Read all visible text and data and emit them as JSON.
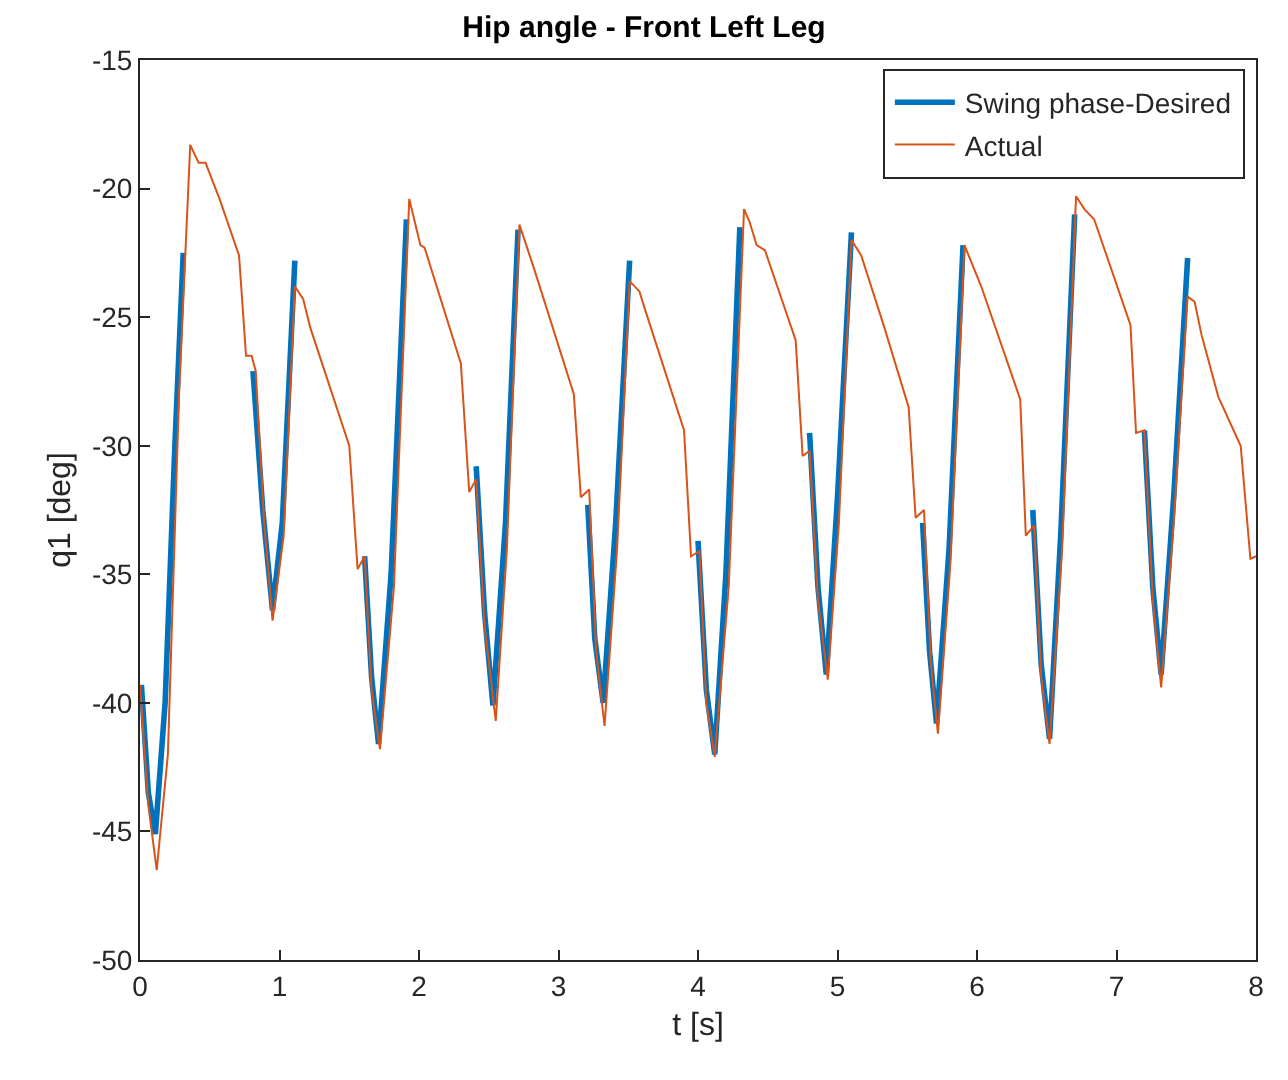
{
  "chart_data": {
    "type": "line",
    "title": "Hip angle - Front Left Leg",
    "xlabel": "t [s]",
    "ylabel": "q1 [deg]",
    "xlim": [
      0,
      8
    ],
    "xticks": [
      0,
      1,
      2,
      3,
      4,
      5,
      6,
      7,
      8
    ],
    "ylim": [
      -50,
      -15
    ],
    "yticks": [
      -50,
      -45,
      -40,
      -35,
      -30,
      -25,
      -20,
      -15
    ],
    "legend": "top right",
    "line_style": "solid",
    "marker": "none",
    "series": [
      {
        "name": "Swing phase-Desired",
        "color": "#0072bd",
        "x": [
          0.01,
          0.06,
          0.11,
          0.18,
          0.25,
          0.31,
          0.32,
          0.81,
          0.88,
          0.95,
          1.02,
          1.11,
          1.12,
          1.61,
          1.66,
          1.71,
          1.8,
          1.91,
          1.92,
          2.41,
          2.47,
          2.53,
          2.62,
          2.71,
          2.72,
          3.21,
          3.26,
          3.32,
          3.41,
          3.51,
          3.52,
          4.0,
          4.06,
          4.12,
          4.2,
          4.3,
          4.31,
          4.8,
          4.86,
          4.92,
          5.0,
          5.1,
          5.11,
          5.61,
          5.66,
          5.71,
          5.8,
          5.9,
          5.91,
          6.4,
          6.46,
          6.52,
          6.6,
          6.7,
          6.71,
          7.2,
          7.26,
          7.32,
          7.41,
          7.51
        ],
        "values": [
          -39.3,
          -43.5,
          -45.1,
          -40.0,
          -30.0,
          -22.5,
          null,
          -27.1,
          -32.5,
          -36.4,
          -33.0,
          -22.8,
          null,
          -34.3,
          -39.0,
          -41.6,
          -35.0,
          -21.2,
          null,
          -30.8,
          -36.5,
          -40.1,
          -33.0,
          -21.6,
          null,
          -32.3,
          -37.5,
          -40.0,
          -33.0,
          -22.8,
          null,
          -33.7,
          -39.5,
          -42.0,
          -35.0,
          -21.5,
          null,
          -29.5,
          -35.5,
          -38.9,
          -32.0,
          -21.7,
          null,
          -33.0,
          -38.0,
          -40.8,
          -34.0,
          -22.2,
          null,
          -32.5,
          -38.5,
          -41.4,
          -33.5,
          -21.0,
          null,
          -29.4,
          -35.5,
          -38.9,
          -32.0,
          -22.7
        ]
      },
      {
        "name": "Actual",
        "color": "#d95319",
        "x": [
          0.0,
          0.06,
          0.12,
          0.2,
          0.28,
          0.36,
          0.42,
          0.47,
          0.57,
          0.71,
          0.76,
          0.8,
          0.83,
          0.89,
          0.95,
          1.03,
          1.11,
          1.17,
          1.22,
          1.5,
          1.56,
          1.61,
          1.66,
          1.72,
          1.82,
          1.93,
          2.01,
          2.04,
          2.3,
          2.36,
          2.41,
          2.47,
          2.55,
          2.63,
          2.72,
          2.83,
          3.11,
          3.16,
          3.22,
          3.27,
          3.33,
          3.42,
          3.51,
          3.58,
          3.62,
          3.9,
          3.95,
          4.01,
          4.06,
          4.12,
          4.22,
          4.33,
          4.37,
          4.42,
          4.48,
          4.7,
          4.75,
          4.8,
          4.86,
          4.93,
          5.01,
          5.1,
          5.17,
          5.33,
          5.51,
          5.56,
          5.62,
          5.67,
          5.72,
          5.81,
          5.91,
          6.03,
          6.31,
          6.35,
          6.41,
          6.46,
          6.52,
          6.61,
          6.71,
          6.77,
          6.84,
          7.1,
          7.14,
          7.2,
          7.26,
          7.32,
          7.41,
          7.51,
          7.56,
          7.61,
          7.73,
          7.89,
          7.96,
          8.0
        ],
        "values": [
          -39.3,
          -44.0,
          -46.5,
          -42.0,
          -28.0,
          -18.3,
          -19.0,
          -19.0,
          -20.4,
          -22.6,
          -26.5,
          -26.5,
          -27.1,
          -33.0,
          -36.8,
          -33.5,
          -23.8,
          -24.3,
          -25.4,
          -30.0,
          -34.8,
          -34.3,
          -39.5,
          -41.8,
          -35.5,
          -20.4,
          -22.2,
          -22.3,
          -26.8,
          -31.8,
          -31.3,
          -37.0,
          -40.7,
          -34.0,
          -21.4,
          -23.2,
          -28.0,
          -32.0,
          -31.7,
          -38.0,
          -40.9,
          -34.0,
          -23.6,
          -24.0,
          -24.7,
          -29.4,
          -34.3,
          -34.1,
          -40.0,
          -42.1,
          -35.5,
          -20.8,
          -21.3,
          -22.2,
          -22.4,
          -25.9,
          -30.4,
          -30.2,
          -36.0,
          -39.1,
          -33.0,
          -22.0,
          -22.6,
          -25.3,
          -28.5,
          -32.8,
          -32.5,
          -38.5,
          -41.2,
          -34.5,
          -22.2,
          -23.8,
          -28.2,
          -33.5,
          -33.1,
          -39.0,
          -41.6,
          -34.0,
          -20.3,
          -20.8,
          -21.2,
          -25.3,
          -29.5,
          -29.4,
          -36.0,
          -39.4,
          -33.0,
          -24.2,
          -24.4,
          -25.7,
          -28.1,
          -30.0,
          -34.4,
          -34.3
        ]
      }
    ]
  }
}
